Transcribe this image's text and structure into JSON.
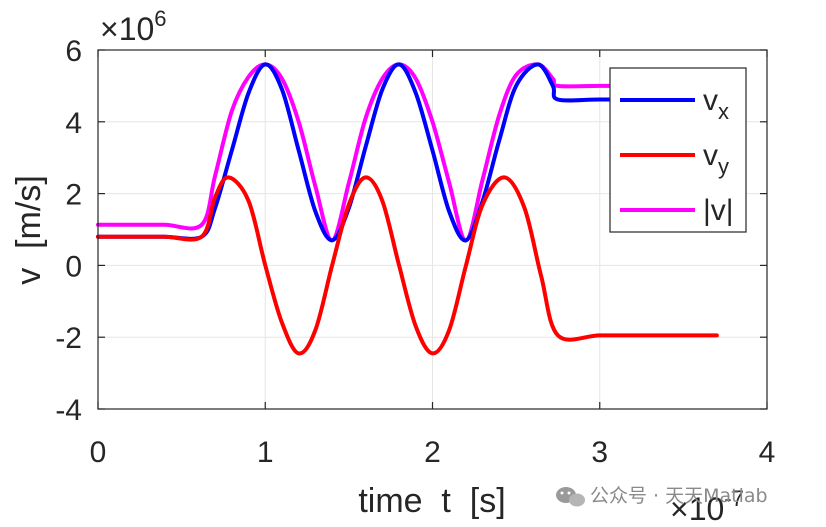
{
  "chart_data": {
    "type": "line",
    "xlabel": "time  t  [s]",
    "ylabel": "v  [m/s]",
    "x_scale_label": "×10",
    "x_scale_exponent": "-7",
    "y_scale_label": "×10",
    "y_scale_exponent": "6",
    "xlim": [
      0,
      4
    ],
    "ylim": [
      -4,
      6
    ],
    "x_ticks": [
      "0",
      "1",
      "2",
      "3",
      "4"
    ],
    "y_ticks": [
      "-4",
      "-2",
      "0",
      "2",
      "4",
      "6"
    ],
    "x_tick_values": [
      0,
      1,
      2,
      3,
      4
    ],
    "y_tick_values": [
      -4,
      -2,
      0,
      2,
      4,
      6
    ],
    "grid": true,
    "legend_position": "top-right",
    "series": [
      {
        "name": "v",
        "name_subscript": "x",
        "color": "#0000ff",
        "x": [
          0,
          0.2,
          0.4,
          0.62,
          0.7,
          0.8,
          0.9,
          1.0,
          1.1,
          1.2,
          1.3,
          1.4,
          1.5,
          1.6,
          1.7,
          1.8,
          1.9,
          2.0,
          2.1,
          2.2,
          2.3,
          2.4,
          2.5,
          2.63,
          2.72,
          2.75,
          3.0,
          3.3,
          3.7
        ],
        "y": [
          0.8,
          0.8,
          0.8,
          0.8,
          1.6,
          3.2,
          4.8,
          5.6,
          4.9,
          3.2,
          1.5,
          0.7,
          1.6,
          3.3,
          4.9,
          5.6,
          4.8,
          3.2,
          1.5,
          0.7,
          1.8,
          3.5,
          5.0,
          5.6,
          5.0,
          4.62,
          4.62,
          4.62,
          4.62
        ]
      },
      {
        "name": "v",
        "name_subscript": "y",
        "color": "#ff0000",
        "x": [
          0,
          0.2,
          0.4,
          0.62,
          0.7,
          0.78,
          0.9,
          1.0,
          1.1,
          1.2,
          1.3,
          1.4,
          1.5,
          1.6,
          1.7,
          1.8,
          1.9,
          2.0,
          2.1,
          2.2,
          2.3,
          2.43,
          2.55,
          2.65,
          2.75,
          3.0,
          3.3,
          3.7
        ],
        "y": [
          0.8,
          0.8,
          0.8,
          0.8,
          1.9,
          2.45,
          1.8,
          0.0,
          -1.6,
          -2.45,
          -1.8,
          0.0,
          1.7,
          2.45,
          1.8,
          0.0,
          -1.7,
          -2.45,
          -1.8,
          0.0,
          1.7,
          2.45,
          1.6,
          -0.3,
          -1.95,
          -1.95,
          -1.95,
          -1.95
        ]
      },
      {
        "name": "|v|",
        "name_subscript": "",
        "color": "#ff00ff",
        "x": [
          0,
          0.2,
          0.4,
          0.62,
          0.7,
          0.8,
          0.9,
          1.0,
          1.1,
          1.2,
          1.3,
          1.4,
          1.5,
          1.6,
          1.7,
          1.8,
          1.9,
          2.0,
          2.1,
          2.2,
          2.3,
          2.4,
          2.5,
          2.63,
          2.72,
          2.75,
          3.0,
          3.3,
          3.7
        ],
        "y": [
          1.13,
          1.13,
          1.13,
          1.13,
          2.5,
          4.3,
          5.25,
          5.6,
          5.2,
          4.0,
          2.2,
          0.7,
          2.3,
          4.1,
          5.2,
          5.6,
          5.2,
          4.0,
          2.3,
          0.7,
          2.4,
          4.2,
          5.3,
          5.6,
          5.2,
          5.0,
          5.0,
          5.0,
          5.0
        ]
      }
    ]
  },
  "watermark": {
    "text": "公众号 · 天天Matlab",
    "icon": "wechat-icon"
  }
}
